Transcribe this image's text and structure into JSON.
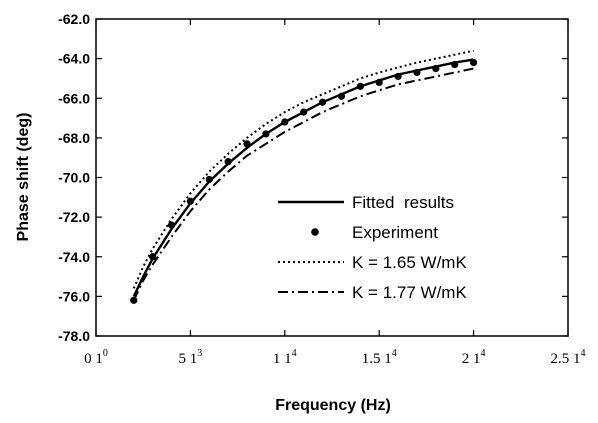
{
  "chart_data": {
    "type": "line",
    "xlabel": "Frequency (Hz)",
    "ylabel": "Phase shift (deg)",
    "xlim": [
      0,
      25000
    ],
    "ylim": [
      -78,
      -62
    ],
    "grid": false,
    "legend_position": "lower-right",
    "x_ticks": [
      {
        "value": 0,
        "mant": "0 1",
        "exp": "0"
      },
      {
        "value": 5000,
        "mant": "5 1",
        "exp": "3"
      },
      {
        "value": 10000,
        "mant": "1 1",
        "exp": "4"
      },
      {
        "value": 15000,
        "mant": "1.5 1",
        "exp": "4"
      },
      {
        "value": 20000,
        "mant": "2 1",
        "exp": "4"
      },
      {
        "value": 25000,
        "mant": "2.5 1",
        "exp": "4"
      }
    ],
    "y_ticks": [
      {
        "value": -62,
        "label": "-62.0"
      },
      {
        "value": -64,
        "label": "-64.0"
      },
      {
        "value": -66,
        "label": "-66.0"
      },
      {
        "value": -68,
        "label": "-68.0"
      },
      {
        "value": -70,
        "label": "-70.0"
      },
      {
        "value": -72,
        "label": "-72.0"
      },
      {
        "value": -74,
        "label": "-74.0"
      },
      {
        "value": -76,
        "label": "-76.0"
      },
      {
        "value": -78,
        "label": "-78.0"
      }
    ],
    "series": [
      {
        "name": "Fitted  results",
        "style": "solid",
        "points": [
          [
            2000,
            -76.0
          ],
          [
            2500,
            -75.0
          ],
          [
            3000,
            -74.1
          ],
          [
            4000,
            -72.6
          ],
          [
            5000,
            -71.3
          ],
          [
            6000,
            -70.2
          ],
          [
            7000,
            -69.3
          ],
          [
            8000,
            -68.5
          ],
          [
            9000,
            -67.8
          ],
          [
            10000,
            -67.2
          ],
          [
            11000,
            -66.7
          ],
          [
            12000,
            -66.2
          ],
          [
            13000,
            -65.8
          ],
          [
            14000,
            -65.4
          ],
          [
            15000,
            -65.1
          ],
          [
            16000,
            -64.8
          ],
          [
            17000,
            -64.6
          ],
          [
            18000,
            -64.4
          ],
          [
            19000,
            -64.2
          ],
          [
            20000,
            -64.05
          ]
        ]
      },
      {
        "name": "Experiment",
        "style": "markers",
        "points": [
          [
            2000,
            -76.2
          ],
          [
            3000,
            -74.0
          ],
          [
            4000,
            -72.4
          ],
          [
            5000,
            -71.2
          ],
          [
            6000,
            -70.1
          ],
          [
            7000,
            -69.2
          ],
          [
            8000,
            -68.3
          ],
          [
            9000,
            -67.8
          ],
          [
            10000,
            -67.2
          ],
          [
            11000,
            -66.7
          ],
          [
            12000,
            -66.2
          ],
          [
            13000,
            -65.9
          ],
          [
            14000,
            -65.4
          ],
          [
            15000,
            -65.2
          ],
          [
            16000,
            -64.9
          ],
          [
            17000,
            -64.7
          ],
          [
            18000,
            -64.5
          ],
          [
            19000,
            -64.3
          ],
          [
            20000,
            -64.2
          ]
        ]
      },
      {
        "name": "K = 1.65 W/mK",
        "style": "dotted",
        "points": [
          [
            2000,
            -75.6
          ],
          [
            2500,
            -74.5
          ],
          [
            3000,
            -73.6
          ],
          [
            4000,
            -72.1
          ],
          [
            5000,
            -70.8
          ],
          [
            6000,
            -69.7
          ],
          [
            7000,
            -68.8
          ],
          [
            8000,
            -68.0
          ],
          [
            9000,
            -67.3
          ],
          [
            10000,
            -66.7
          ],
          [
            11000,
            -66.2
          ],
          [
            12000,
            -65.8
          ],
          [
            13000,
            -65.4
          ],
          [
            14000,
            -65.0
          ],
          [
            15000,
            -64.7
          ],
          [
            16000,
            -64.45
          ],
          [
            17000,
            -64.2
          ],
          [
            18000,
            -64.0
          ],
          [
            19000,
            -63.8
          ],
          [
            20000,
            -63.6
          ]
        ]
      },
      {
        "name": "K = 1.77 W/mK",
        "style": "dashdot",
        "points": [
          [
            2000,
            -76.2
          ],
          [
            2500,
            -75.2
          ],
          [
            3000,
            -74.4
          ],
          [
            4000,
            -73.0
          ],
          [
            5000,
            -71.7
          ],
          [
            6000,
            -70.6
          ],
          [
            7000,
            -69.7
          ],
          [
            8000,
            -68.9
          ],
          [
            9000,
            -68.3
          ],
          [
            10000,
            -67.7
          ],
          [
            11000,
            -67.2
          ],
          [
            12000,
            -66.7
          ],
          [
            13000,
            -66.3
          ],
          [
            14000,
            -65.9
          ],
          [
            15000,
            -65.6
          ],
          [
            16000,
            -65.3
          ],
          [
            17000,
            -65.1
          ],
          [
            18000,
            -64.9
          ],
          [
            19000,
            -64.7
          ],
          [
            20000,
            -64.5
          ]
        ]
      }
    ]
  }
}
